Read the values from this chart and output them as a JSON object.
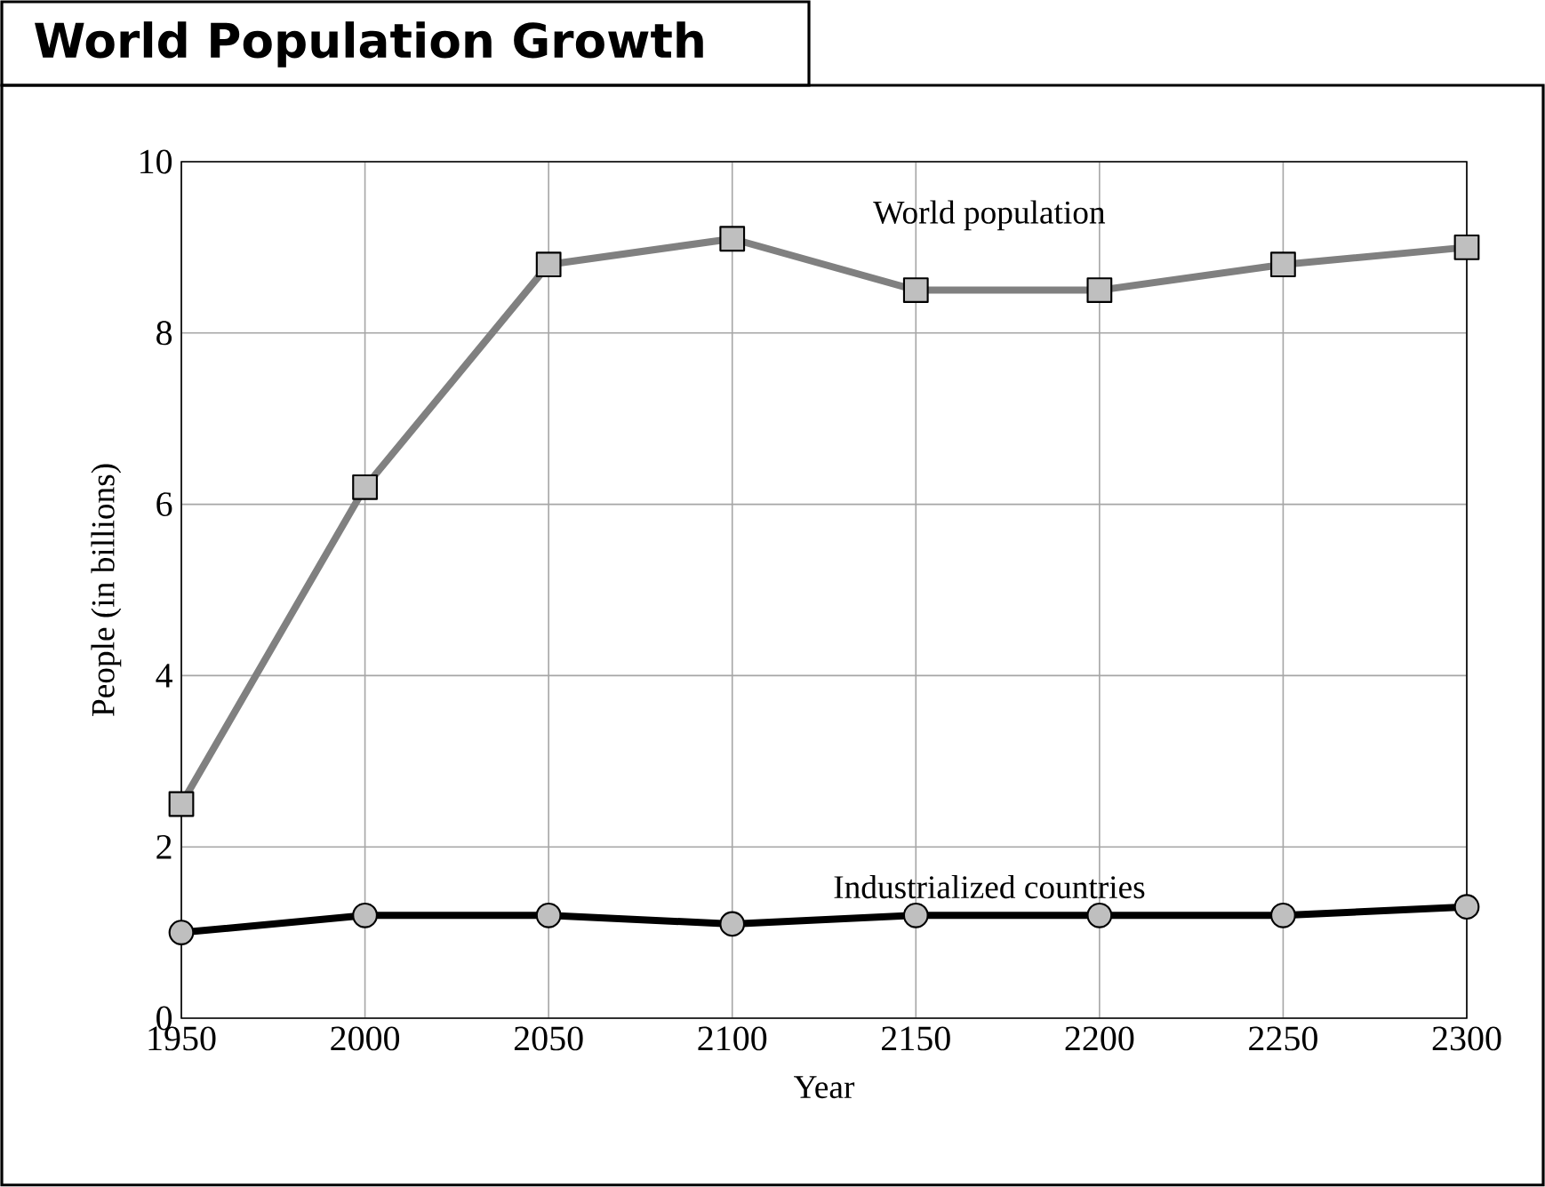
{
  "chart_data": {
    "type": "line",
    "title": "World Population Growth",
    "xlabel": "Year",
    "ylabel": "People (in billions)",
    "x": [
      1950,
      2000,
      2050,
      2100,
      2150,
      2200,
      2250,
      2300
    ],
    "series": [
      {
        "name": "World population",
        "color": "#808080",
        "marker": "square",
        "values": [
          2.5,
          6.2,
          8.8,
          9.1,
          8.5,
          8.5,
          8.8,
          9.0
        ]
      },
      {
        "name": "Industrialized countries",
        "color": "#000000",
        "marker": "circle",
        "values": [
          1.0,
          1.2,
          1.2,
          1.1,
          1.2,
          1.2,
          1.2,
          1.3
        ]
      }
    ],
    "xlim": [
      1950,
      2300
    ],
    "xticks": [
      1950,
      2000,
      2050,
      2100,
      2150,
      2200,
      2250,
      2300
    ],
    "ylim": [
      0,
      10
    ],
    "yticks": [
      0,
      2,
      4,
      6,
      8,
      10
    ],
    "grid": true,
    "line_style": "solid"
  }
}
